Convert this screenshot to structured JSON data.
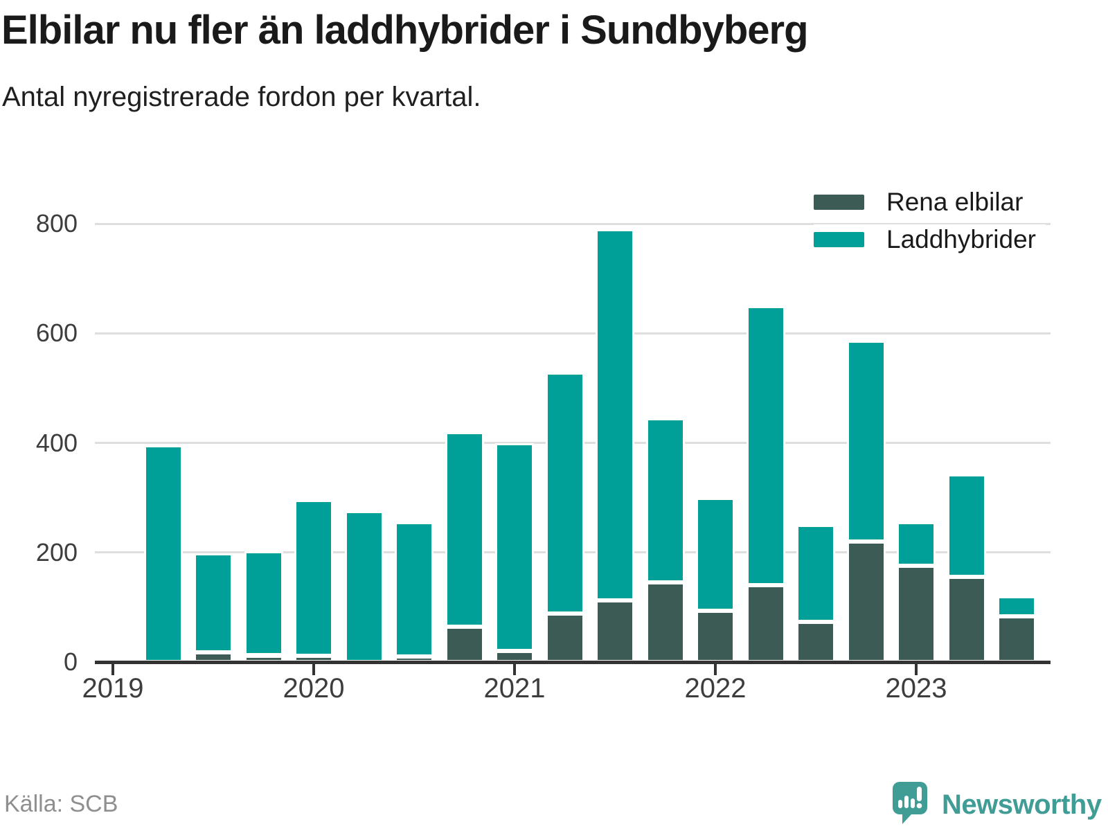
{
  "header": {
    "title": "Elbilar nu fler än laddhybrider i Sundbyberg",
    "subtitle": "Antal nyregistrerade fordon per kvartal."
  },
  "legend": [
    {
      "label": "Rena elbilar",
      "color": "#3C5B54"
    },
    {
      "label": "Laddhybrider",
      "color": "#00A099"
    }
  ],
  "chart_data": {
    "type": "bar",
    "stacked": true,
    "title": "Elbilar nu fler än laddhybrider i Sundbyberg",
    "subtitle": "Antal nyregistrerade fordon per kvartal.",
    "categories": [
      "2019 Q2",
      "2019 Q3",
      "2019 Q4",
      "2020 Q1",
      "2020 Q2",
      "2020 Q3",
      "2020 Q4",
      "2021 Q1",
      "2021 Q2",
      "2021 Q3",
      "2021 Q4",
      "2022 Q1",
      "2022 Q2",
      "2022 Q3",
      "2022 Q4",
      "2023 Q1",
      "2023 Q2",
      "2023 Q3"
    ],
    "series": [
      {
        "name": "Rena elbilar",
        "color": "#3C5B54",
        "values": [
          0,
          18,
          12,
          11,
          0,
          10,
          65,
          20,
          89,
          112,
          145,
          93,
          140,
          73,
          220,
          176,
          155,
          83
        ]
      },
      {
        "name": "Laddhybrider",
        "color": "#00A099",
        "values": [
          395,
          180,
          190,
          285,
          275,
          245,
          355,
          380,
          439,
          678,
          300,
          207,
          509,
          177,
          367,
          79,
          188,
          37
        ]
      }
    ],
    "x_tick_labels": [
      "2019",
      "2020",
      "2021",
      "2022",
      "2023"
    ],
    "y_ticks": [
      0,
      200,
      400,
      600,
      800
    ],
    "ylim": [
      0,
      840
    ],
    "xlabel": "",
    "ylabel": "",
    "grid": true,
    "legend_position": "top-right",
    "source": "Källa: SCB"
  },
  "footer": {
    "source": "Källa: SCB",
    "brand": "Newsworthy",
    "brand_color": "#3F9D96"
  }
}
